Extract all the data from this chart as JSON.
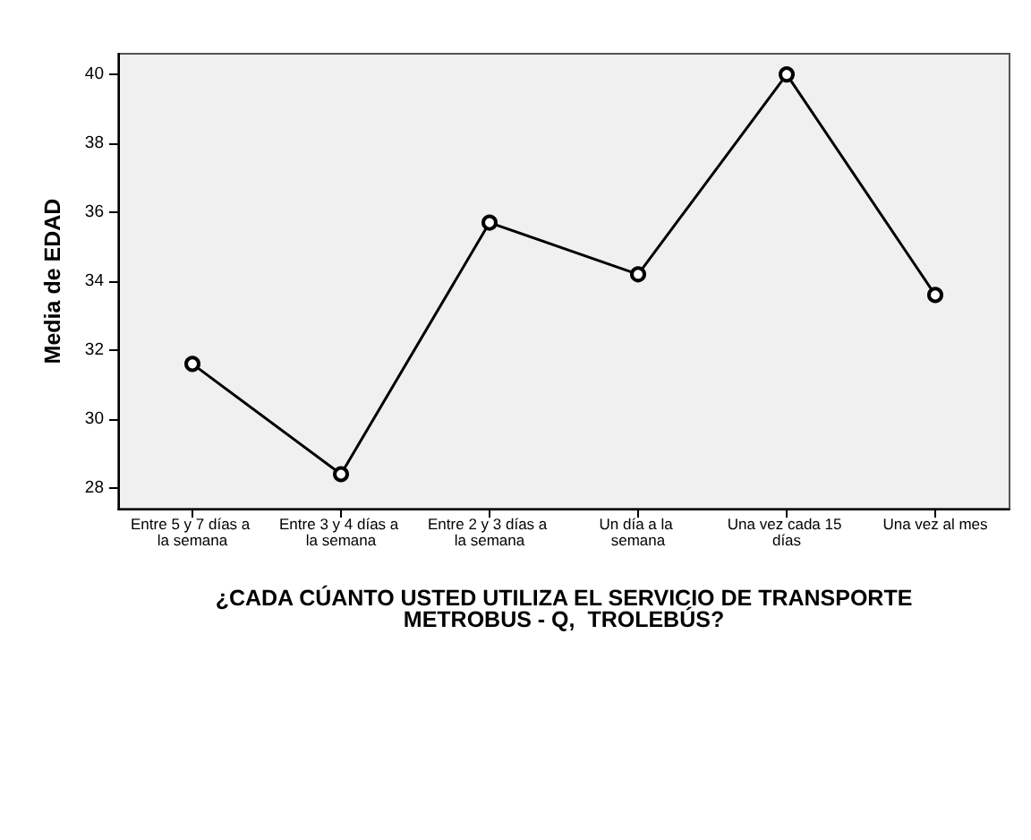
{
  "chart_data": {
    "type": "line",
    "categories": [
      "Entre 5 y 7 días a la semana",
      "Entre 3 y 4 días a la semana",
      "Entre 2 y 3 días a la semana",
      "Un día a la semana",
      "Una vez cada 15 días",
      "Una vez al mes"
    ],
    "values": [
      31.6,
      28.4,
      35.7,
      34.2,
      40.0,
      33.6
    ],
    "color": "#000000",
    "ylabel": "Media de EDAD",
    "xlabel": "¿CADA CÚANTO USTED UTILIZA EL SERVICIO DE TRANSPORTE METROBUS - Q,  TROLEBÚS?",
    "ylim": [
      27.4,
      40.6
    ],
    "yticks": [
      28,
      30,
      32,
      34,
      36,
      38,
      40
    ],
    "grid": false,
    "marker": "circle",
    "line_style": "solid"
  }
}
